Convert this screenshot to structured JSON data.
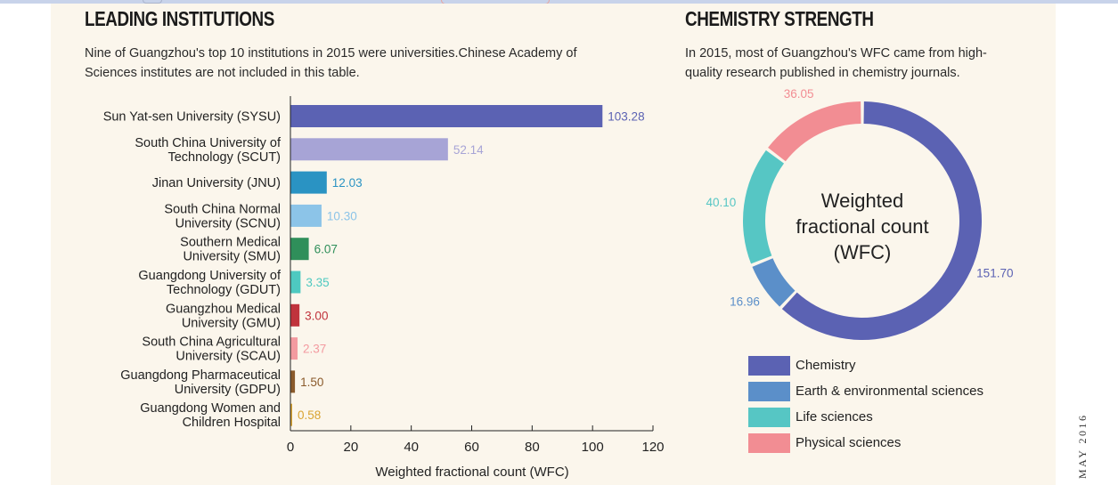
{
  "left": {
    "title": "LEADING INSTITUTIONS",
    "description_line1": "Nine of Guangzhou's top 10 institutions in 2015 were universities.Chinese Academy of",
    "description_line2": "Sciences institutes are not included in this table."
  },
  "right": {
    "title": "CHEMISTRY STRENGTH",
    "description_line1": "In 2015, most of Guangzhou's WFC came from high-",
    "description_line2": "quality research published in chemistry journals."
  },
  "side_date": "MAY 2016",
  "chart_data": [
    {
      "type": "bar",
      "orientation": "horizontal",
      "categories": [
        [
          "Sun Yat-sen University (SYSU)"
        ],
        [
          "South China University of",
          "Technology (SCUT)"
        ],
        [
          "Jinan University (JNU)"
        ],
        [
          "South China Normal",
          "University (SCNU)"
        ],
        [
          "Southern Medical",
          "University (SMU)"
        ],
        [
          "Guangdong University of",
          "Technology (GDUT)"
        ],
        [
          "Guangzhou Medical",
          "University (GMU)"
        ],
        [
          "South China Agricultural",
          "University (SCAU)"
        ],
        [
          "Guangdong Pharmaceutical",
          "University (GDPU)"
        ],
        [
          "Guangdong Women and",
          "Children Hospital"
        ]
      ],
      "values": [
        103.28,
        52.14,
        12.03,
        10.3,
        6.07,
        3.35,
        3.0,
        2.37,
        1.5,
        0.58
      ],
      "value_labels": [
        "103.28",
        "52.14",
        "12.03",
        "10.30",
        "6.07",
        "3.35",
        "3.00",
        "2.37",
        "1.50",
        "0.58"
      ],
      "colors": [
        "#5b62b3",
        "#a7a4d6",
        "#2a93c3",
        "#8cc4e8",
        "#2f8f5a",
        "#4ec9c0",
        "#c0333c",
        "#f39aa0",
        "#8a5a2b",
        "#d9a431"
      ],
      "xlabel": "Weighted fractional count (WFC)",
      "xlim": [
        0,
        120
      ],
      "xticks": [
        0,
        20,
        40,
        60,
        80,
        100,
        120
      ],
      "grid": false
    },
    {
      "type": "pie",
      "variant": "donut",
      "center_text": [
        "Weighted",
        "fractional count",
        "(WFC)"
      ],
      "slices": [
        {
          "label": "Chemistry",
          "value": 151.7,
          "value_label": "151.70",
          "color": "#5b62b3"
        },
        {
          "label": "Earth & environmental sciences",
          "value": 16.96,
          "value_label": "16.96",
          "color": "#5b8fc9"
        },
        {
          "label": "Life sciences",
          "value": 40.1,
          "value_label": "40.10",
          "color": "#56c6c4"
        },
        {
          "label": "Physical sciences",
          "value": 36.05,
          "value_label": "36.05",
          "color": "#f28d93"
        }
      ],
      "start_angle_deg": 0,
      "direction": "clockwise",
      "legend_position": "bottom"
    }
  ]
}
